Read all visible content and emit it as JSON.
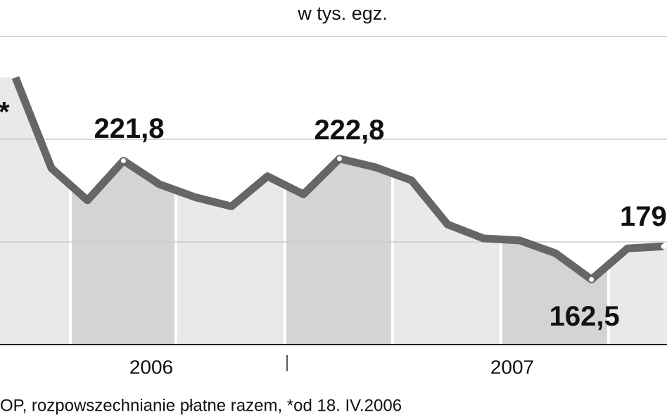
{
  "chart_data": {
    "type": "line",
    "subtitle": "w tys. egz.",
    "categories": [
      null,
      null,
      null,
      null,
      null,
      null,
      null,
      null,
      null,
      null,
      null,
      null,
      null,
      null,
      null,
      null,
      null,
      null,
      null
    ],
    "series": [
      {
        "color": "#666666",
        "values": [
          263.3,
          218,
          202,
          221.8,
          210,
          203.5,
          199,
          214,
          205,
          222.8,
          218.5,
          212,
          190,
          183,
          182,
          175.6,
          162.5,
          178,
          179
        ],
        "value_labels": [
          null,
          null,
          null,
          "221,8",
          null,
          null,
          null,
          null,
          null,
          "222,8",
          null,
          null,
          null,
          null,
          null,
          null,
          "162,5",
          null,
          "179"
        ]
      }
    ],
    "ylim": [
      130,
      302
    ],
    "year_labels": [
      "2006",
      "2007"
    ],
    "annotation": "*",
    "source": "OP, rozpowszechnianie płatne razem, *od 18. IV.2006"
  }
}
